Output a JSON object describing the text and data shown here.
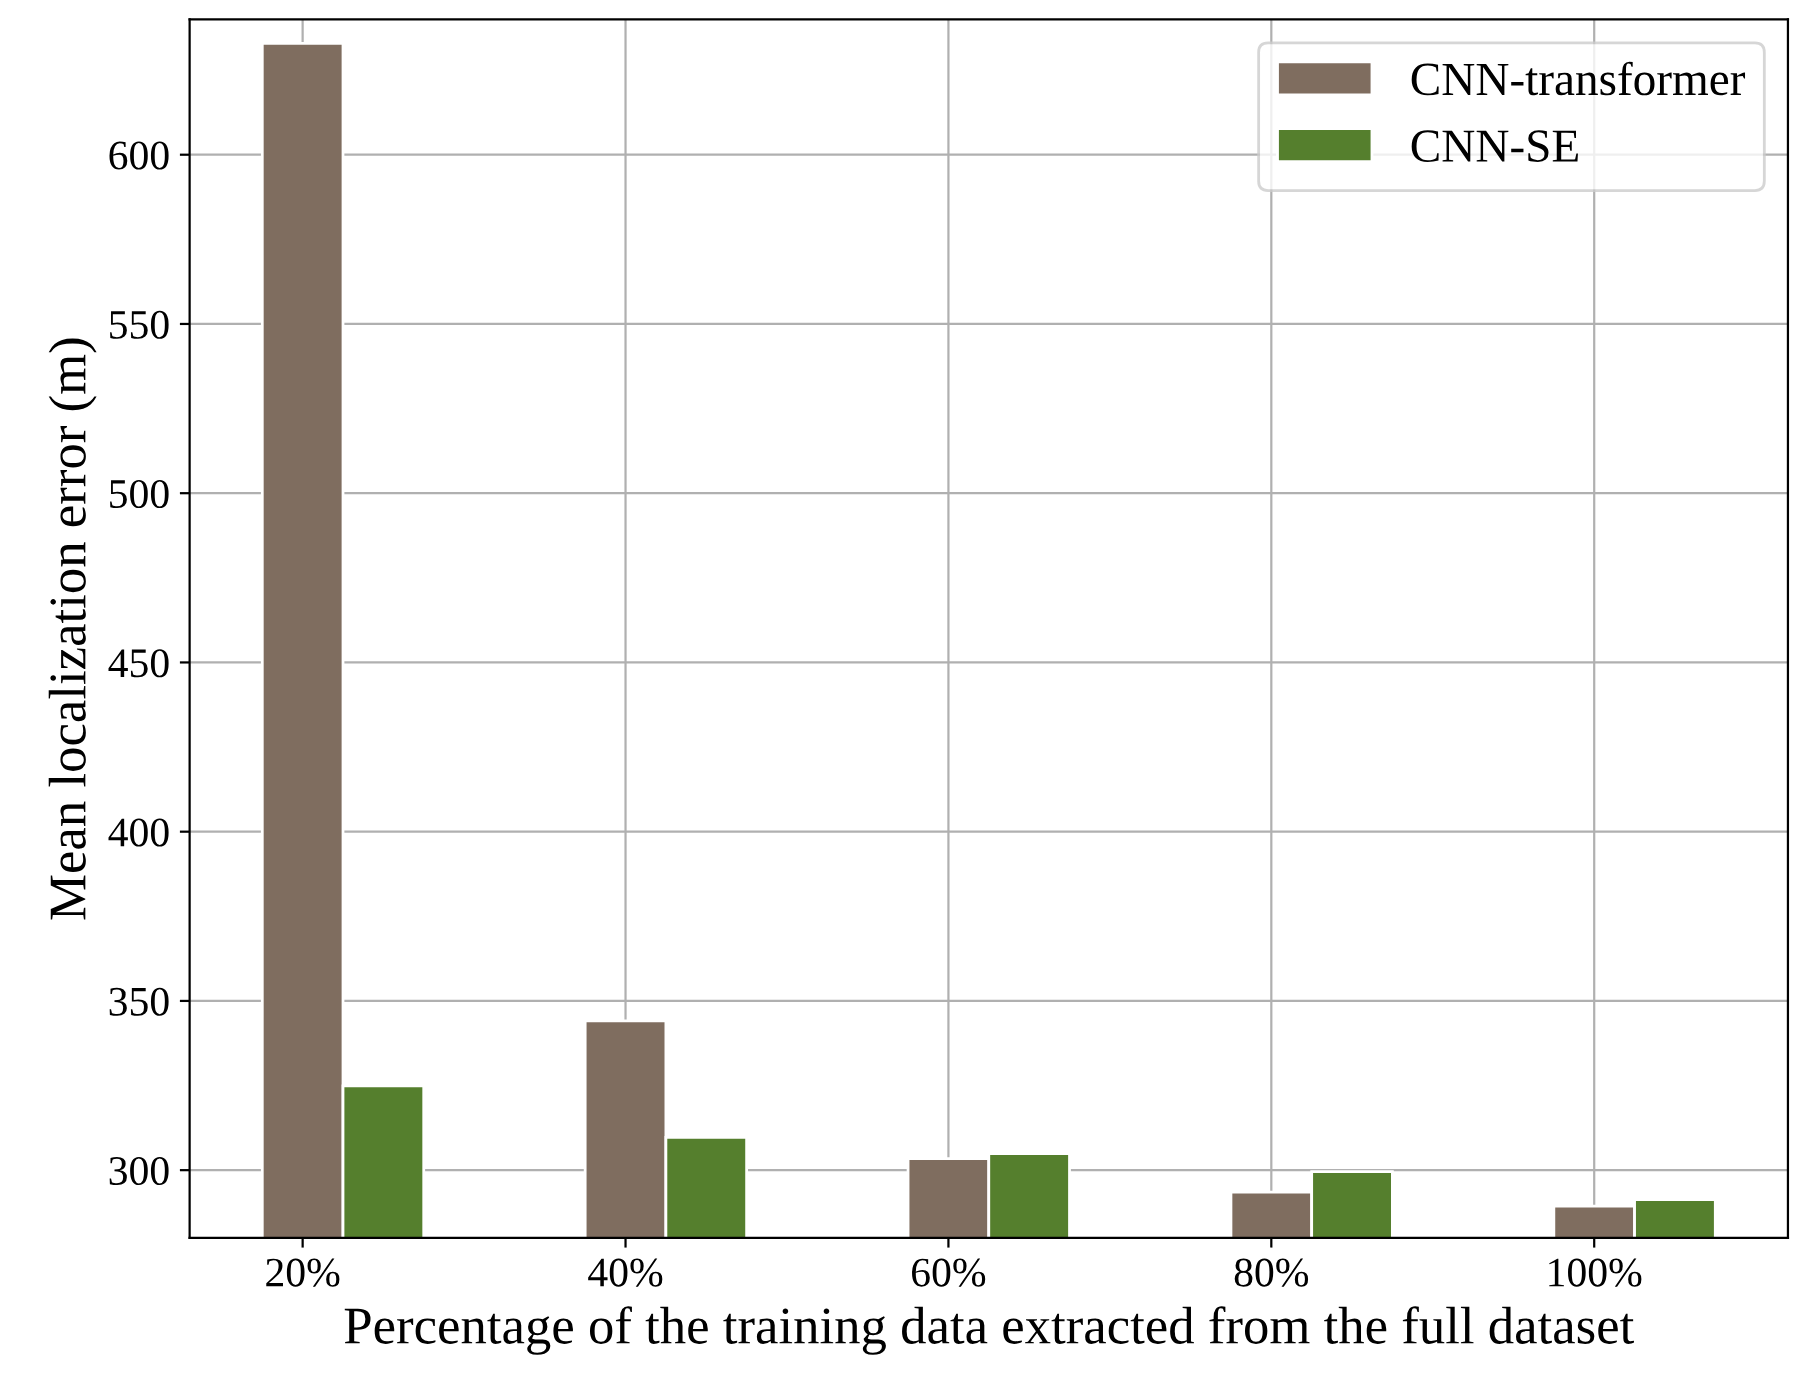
{
  "chart_data": {
    "type": "bar",
    "xlabel": "Percentage of the training data extracted from the full dataset",
    "ylabel": "Mean localization error (m)",
    "categories": [
      "20%",
      "40%",
      "60%",
      "80%",
      "100%"
    ],
    "series": [
      {
        "name": "CNN-transformer",
        "color": "#7f6d5f",
        "values": [
          632.9,
          344.1,
          303.4,
          293.5,
          289.4
        ]
      },
      {
        "name": "CNN-SE",
        "color": "#557f2d",
        "values": [
          324.9,
          309.7,
          304.9,
          299.6,
          291.3
        ]
      }
    ],
    "ylim": [
      280,
      640
    ],
    "yticks": [
      300,
      350,
      400,
      450,
      500,
      550,
      600
    ],
    "grid": true,
    "legend": "top right"
  }
}
